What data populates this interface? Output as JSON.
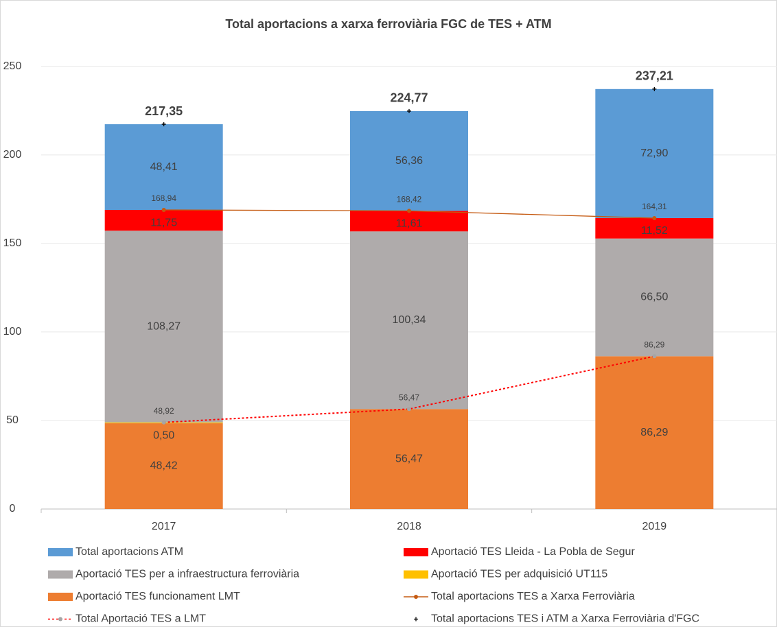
{
  "chart_data": {
    "type": "bar",
    "stacked": true,
    "title": "Total aportacions a xarxa ferroviària FGC de TES + ATM",
    "categories": [
      "2017",
      "2018",
      "2019"
    ],
    "ylim": [
      0,
      260
    ],
    "yticks": [
      0,
      50,
      100,
      150,
      200,
      250
    ],
    "grid": true,
    "series": [
      {
        "name": "Total aportacions ATM",
        "type": "bar",
        "color": "#5b9bd5",
        "values": [
          48.41,
          56.36,
          72.9
        ],
        "value_labels": [
          "48,41",
          "56,36",
          "72,90"
        ]
      },
      {
        "name": "Aportació TES Lleida - La Pobla de Segur",
        "type": "bar",
        "color": "#ff0000",
        "values": [
          11.75,
          11.61,
          11.52
        ],
        "value_labels": [
          "11,75",
          "11,61",
          "11,52"
        ]
      },
      {
        "name": "Aportació TES per a infraestructura ferroviària",
        "type": "bar",
        "color": "#afabab",
        "values": [
          108.27,
          100.34,
          66.5
        ],
        "value_labels": [
          "108,27",
          "100,34",
          "66,50"
        ]
      },
      {
        "name": "Aportació TES per adquisició UT115",
        "type": "bar",
        "color": "#ffc000",
        "values": [
          0.5,
          null,
          null
        ],
        "value_labels": [
          "0,50",
          null,
          null
        ]
      },
      {
        "name": "Aportació TES funcionament LMT",
        "type": "bar",
        "color": "#ed7d31",
        "values": [
          48.42,
          56.47,
          86.29
        ],
        "value_labels": [
          "48,42",
          "56,47",
          "86,29"
        ]
      },
      {
        "name": "Total aportacions TES a Xarxa Ferroviària",
        "type": "line",
        "color": "#c55a11",
        "values": [
          168.94,
          168.42,
          164.31
        ],
        "value_labels": [
          "168,94",
          "168,42",
          "164,31"
        ]
      },
      {
        "name": "Total Aportació TES a LMT",
        "type": "line",
        "line_style": "dotted",
        "color": "#ff0000",
        "marker_color": "#a5a5a5",
        "values": [
          48.92,
          56.47,
          86.29
        ],
        "value_labels": [
          "48,92",
          "56,47",
          "86,29"
        ]
      },
      {
        "name": "Total aportacions TES i ATM a Xarxa Ferroviària d'FGC",
        "type": "scatter",
        "marker": "+",
        "color": "#000000",
        "values": [
          217.35,
          224.77,
          237.21
        ],
        "value_labels": [
          "217,35",
          "224,77",
          "237,21"
        ]
      }
    ]
  }
}
